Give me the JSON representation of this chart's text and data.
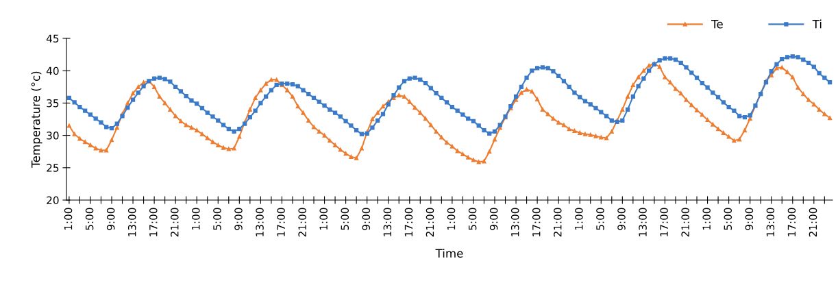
{
  "chart_data": {
    "type": "line",
    "xlabel": "Time",
    "ylabel": "Temperature (°c)",
    "categories": [
      "1:00",
      null,
      null,
      null,
      "5:00",
      null,
      null,
      null,
      "9:00",
      null,
      null,
      null,
      "13:00",
      null,
      null,
      null,
      "17:00",
      null,
      null,
      null,
      "21:00",
      null,
      null,
      null,
      "1:00",
      null,
      null,
      null,
      "5:00",
      null,
      null,
      null,
      "9:00",
      null,
      null,
      null,
      "13:00",
      null,
      null,
      null,
      "17:00",
      null,
      null,
      null,
      "21:00",
      null,
      null,
      null,
      "1:00",
      null,
      null,
      null,
      "5:00",
      null,
      null,
      null,
      "9:00",
      null,
      null,
      null,
      "13:00",
      null,
      null,
      null,
      "17:00",
      null,
      null,
      null,
      "21:00",
      null,
      null,
      null,
      "1:00",
      null,
      null,
      null,
      "5:00",
      null,
      null,
      null,
      "9:00",
      null,
      null,
      null,
      "13:00",
      null,
      null,
      null,
      "17:00",
      null,
      null,
      null,
      "21:00",
      null,
      null,
      null,
      "1:00",
      null,
      null,
      null,
      "5:00",
      null,
      null,
      null,
      "9:00",
      null,
      null,
      null,
      "13:00",
      null,
      null,
      null,
      "17:00",
      null,
      null,
      null,
      "21:00",
      null,
      null,
      null,
      "1:00",
      null,
      null,
      null,
      "5:00",
      null,
      null,
      null,
      "9:00",
      null,
      null,
      null,
      "13:00",
      null,
      null,
      null,
      "17:00",
      null,
      null,
      null,
      "21:00",
      null,
      null,
      null
    ],
    "series": [
      {
        "name": "Te",
        "color": "#ed7d31",
        "marker": "triangle",
        "values": [
          31.5,
          30.2,
          29.5,
          29.0,
          28.5,
          28.0,
          27.7,
          27.7,
          29.3,
          31.2,
          33.3,
          35.0,
          36.5,
          37.5,
          38.2,
          38.4,
          37.5,
          36.0,
          35.0,
          34.0,
          33.0,
          32.2,
          31.6,
          31.2,
          30.8,
          30.2,
          29.6,
          29.0,
          28.5,
          28.1,
          27.9,
          28.0,
          29.8,
          32.0,
          34.0,
          35.8,
          37.0,
          38.0,
          38.6,
          38.6,
          37.8,
          37.0,
          36.0,
          34.5,
          33.5,
          32.3,
          31.3,
          30.6,
          30.0,
          29.2,
          28.5,
          27.8,
          27.2,
          26.7,
          26.5,
          28.0,
          30.5,
          32.5,
          33.5,
          34.5,
          35.2,
          35.8,
          36.2,
          36.0,
          35.2,
          34.3,
          33.5,
          32.6,
          31.6,
          30.6,
          29.7,
          28.9,
          28.3,
          27.6,
          27.1,
          26.6,
          26.2,
          25.9,
          26.0,
          27.5,
          29.4,
          31.2,
          32.8,
          34.2,
          35.5,
          36.6,
          37.1,
          36.8,
          35.6,
          34.0,
          33.3,
          32.6,
          32.0,
          31.6,
          31.0,
          30.7,
          30.4,
          30.2,
          30.1,
          29.9,
          29.7,
          29.6,
          30.6,
          32.3,
          34.0,
          36.0,
          37.8,
          39.0,
          40.0,
          40.8,
          41.1,
          40.6,
          39.0,
          38.2,
          37.2,
          36.5,
          35.5,
          34.7,
          33.9,
          33.2,
          32.4,
          31.7,
          31.0,
          30.4,
          29.8,
          29.2,
          29.4,
          30.8,
          32.6,
          34.6,
          36.5,
          38.4,
          39.3,
          40.4,
          40.5,
          39.8,
          39.0,
          37.4,
          36.4,
          35.5,
          34.8,
          34.0,
          33.3,
          32.7
        ]
      },
      {
        "name": "Ti",
        "color": "#3a7ac8",
        "marker": "square",
        "values": [
          35.8,
          35.1,
          34.4,
          33.8,
          33.2,
          32.6,
          32.0,
          31.3,
          31.1,
          31.8,
          33.0,
          34.3,
          35.5,
          36.6,
          37.6,
          38.4,
          38.8,
          38.9,
          38.7,
          38.3,
          37.5,
          36.8,
          36.1,
          35.4,
          34.9,
          34.2,
          33.5,
          32.9,
          32.3,
          31.6,
          31.0,
          30.6,
          31.0,
          31.8,
          32.8,
          33.8,
          35.0,
          36.0,
          37.0,
          37.8,
          38.0,
          38.0,
          37.9,
          37.6,
          37.0,
          36.4,
          35.8,
          35.2,
          34.6,
          34.0,
          33.5,
          32.9,
          32.2,
          31.5,
          30.8,
          30.2,
          30.3,
          31.2,
          32.3,
          33.3,
          34.8,
          36.2,
          37.4,
          38.4,
          38.8,
          38.9,
          38.6,
          38.1,
          37.3,
          36.5,
          35.8,
          35.1,
          34.4,
          33.8,
          33.2,
          32.6,
          32.2,
          31.5,
          30.8,
          30.3,
          30.6,
          31.6,
          32.9,
          34.5,
          36.0,
          37.5,
          38.9,
          40.0,
          40.4,
          40.5,
          40.4,
          39.9,
          39.2,
          38.4,
          37.5,
          36.6,
          35.9,
          35.3,
          34.8,
          34.2,
          33.6,
          33.0,
          32.3,
          32.1,
          32.3,
          34.0,
          36.0,
          37.6,
          38.8,
          40.0,
          41.0,
          41.6,
          41.9,
          41.9,
          41.7,
          41.2,
          40.5,
          39.7,
          38.9,
          38.1,
          37.4,
          36.6,
          35.9,
          35.1,
          34.4,
          33.8,
          33.0,
          32.8,
          33.1,
          34.6,
          36.4,
          38.2,
          39.9,
          41.0,
          41.8,
          42.1,
          42.2,
          42.1,
          41.7,
          41.2,
          40.6,
          39.6,
          38.9,
          38.2
        ]
      }
    ],
    "ylim": [
      20,
      45
    ],
    "yticks": [
      20,
      25,
      30,
      35,
      40,
      45
    ],
    "grid": false,
    "legend": "top right"
  }
}
